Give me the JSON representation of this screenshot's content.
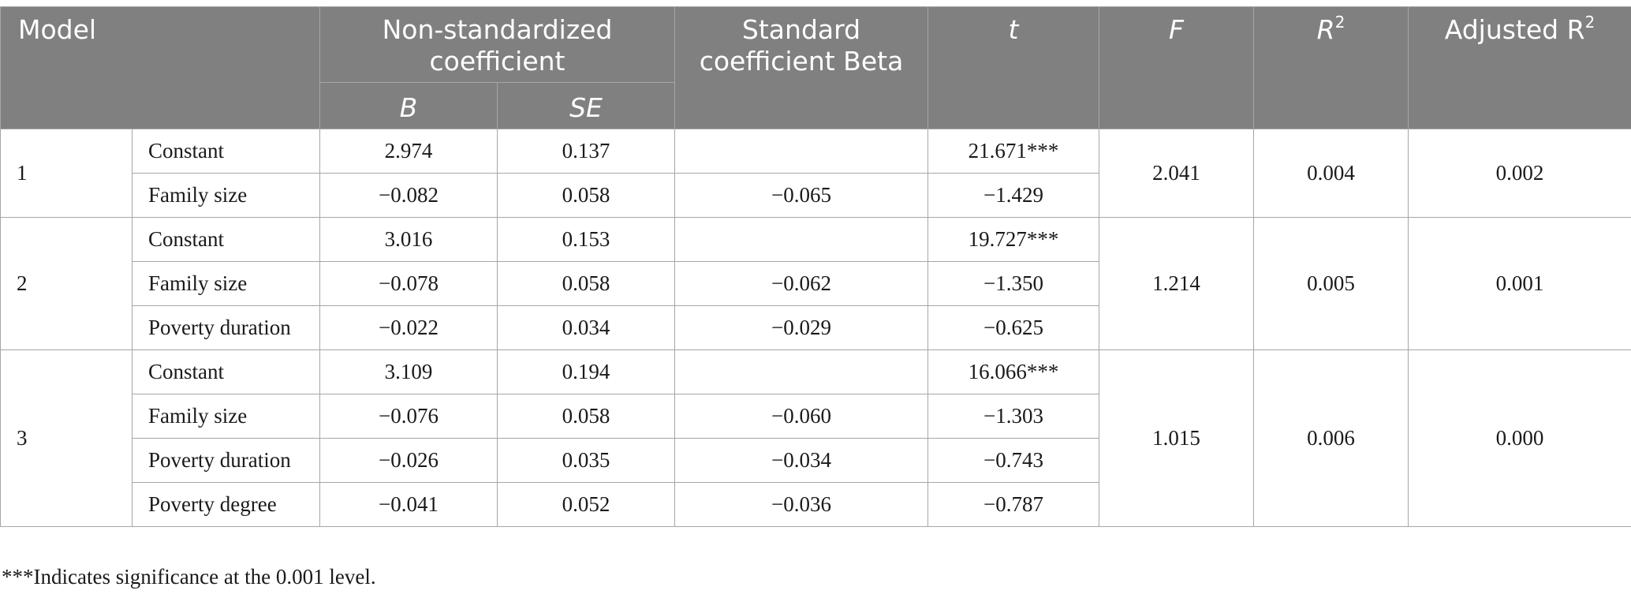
{
  "header": {
    "model": "Model",
    "non_std_coef": "Non-standardized coefficient",
    "std_coef": "Standard coefficient Beta",
    "t": "t",
    "f": "F",
    "r2_base": "R",
    "r2_sup": "2",
    "adj_r2_base": "Adjusted R",
    "adj_r2_sup": "2",
    "b": "B",
    "se": "SE"
  },
  "models": [
    {
      "id": "1",
      "f": "2.041",
      "r2": "0.004",
      "adj_r2": "0.002",
      "rows": [
        {
          "variable": "Constant",
          "b": "2.974",
          "se": "0.137",
          "beta": "",
          "t": "21.671***"
        },
        {
          "variable": "Family size",
          "b": "−0.082",
          "se": "0.058",
          "beta": "−0.065",
          "t": "−1.429"
        }
      ]
    },
    {
      "id": "2",
      "f": "1.214",
      "r2": "0.005",
      "adj_r2": "0.001",
      "rows": [
        {
          "variable": "Constant",
          "b": "3.016",
          "se": "0.153",
          "beta": "",
          "t": "19.727***"
        },
        {
          "variable": "Family size",
          "b": "−0.078",
          "se": "0.058",
          "beta": "−0.062",
          "t": "−1.350"
        },
        {
          "variable": "Poverty duration",
          "b": "−0.022",
          "se": "0.034",
          "beta": "−0.029",
          "t": "−0.625"
        }
      ]
    },
    {
      "id": "3",
      "f": "1.015",
      "r2": "0.006",
      "adj_r2": "0.000",
      "rows": [
        {
          "variable": "Constant",
          "b": "3.109",
          "se": "0.194",
          "beta": "",
          "t": "16.066***"
        },
        {
          "variable": "Family size",
          "b": "−0.076",
          "se": "0.058",
          "beta": "−0.060",
          "t": "−1.303"
        },
        {
          "variable": "Poverty duration",
          "b": "−0.026",
          "se": "0.035",
          "beta": "−0.034",
          "t": "−0.743"
        },
        {
          "variable": "Poverty degree",
          "b": "−0.041",
          "se": "0.052",
          "beta": "−0.036",
          "t": "−0.787"
        }
      ]
    }
  ],
  "footnote": "***Indicates significance at the 0.001 level."
}
